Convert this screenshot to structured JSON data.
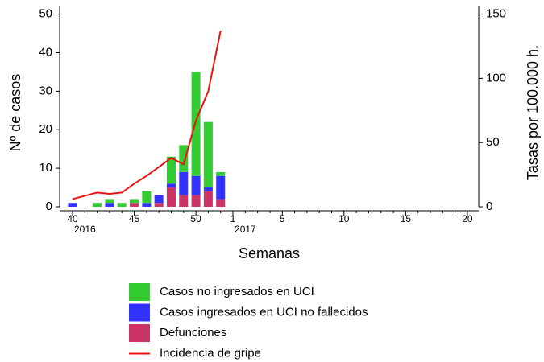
{
  "chart_data": {
    "type": "bar",
    "x_label": "Semanas",
    "y_label": "Nº de casos",
    "y2_label": "Tasas por 100.000 h.",
    "categories": [
      "40",
      null,
      null,
      null,
      null,
      "45",
      null,
      null,
      null,
      null,
      "50",
      null,
      null,
      "1",
      null,
      null,
      null,
      "5",
      null,
      null,
      null,
      null,
      "10",
      null,
      null,
      null,
      null,
      "15",
      null,
      null,
      null,
      null,
      "20"
    ],
    "year_labels": [
      "2016",
      "2017"
    ],
    "series": [
      {
        "name": "Defunciones",
        "color": "#cc3366",
        "values": [
          0,
          null,
          0,
          0,
          0,
          1,
          0,
          1,
          5,
          3,
          3,
          4,
          2,
          null,
          null,
          null,
          null,
          null,
          null,
          null,
          null,
          null,
          null,
          null,
          null,
          null,
          null,
          null,
          null,
          null,
          null,
          null,
          null
        ]
      },
      {
        "name": "Casos ingresados en UCI no fallecidos",
        "color": "#3333ff",
        "values": [
          1,
          null,
          0,
          1,
          0,
          0,
          1,
          2,
          1,
          6,
          5,
          1,
          6,
          null,
          null,
          null,
          null,
          null,
          null,
          null,
          null,
          null,
          null,
          null,
          null,
          null,
          null,
          null,
          null,
          null,
          null,
          null,
          null
        ]
      },
      {
        "name": "Casos no ingresados en UCI",
        "color": "#33cc33",
        "values": [
          0,
          null,
          1,
          1,
          1,
          1,
          3,
          0,
          7,
          7,
          27,
          17,
          1,
          null,
          null,
          null,
          null,
          null,
          null,
          null,
          null,
          null,
          null,
          null,
          null,
          null,
          null,
          null,
          null,
          null,
          null,
          null,
          null
        ]
      },
      {
        "name": "Incidencia de gripe",
        "color": "#ee1111",
        "axis": "y2",
        "values": [
          6,
          8.5,
          11,
          10,
          11,
          18,
          24,
          31,
          38,
          33,
          67,
          90,
          137,
          null,
          null,
          null,
          null,
          null,
          null,
          null,
          null,
          null,
          null,
          null,
          null,
          null,
          null,
          null,
          null,
          null,
          null,
          null,
          null
        ]
      }
    ],
    "ylim": [
      0,
      52
    ],
    "yticks": [
      0,
      10,
      20,
      30,
      40,
      50
    ],
    "y2lim": [
      0,
      156
    ],
    "y2ticks": [
      0,
      50,
      100,
      150
    ]
  }
}
